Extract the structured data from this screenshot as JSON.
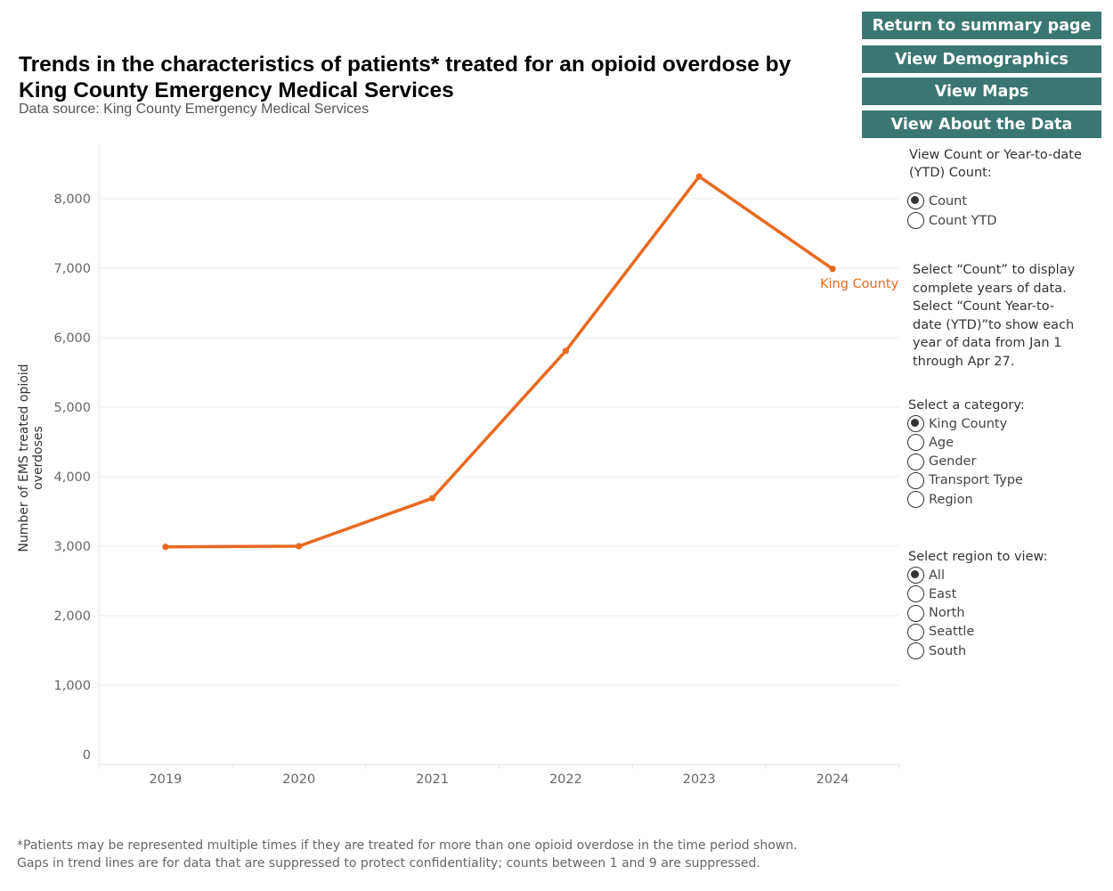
{
  "header": {
    "title": "Trends in the characteristics of patients* treated for an opioid overdose by King County Emergency Medical Services",
    "subtitle": "Data source: King County Emergency Medical Services"
  },
  "nav": {
    "summary": "Return to summary page",
    "demographics": "View Demographics",
    "maps": "View Maps",
    "about": "View About the Data"
  },
  "controls": {
    "count_label": "View Count or Year-to-date (YTD) Count:",
    "count_options": [
      {
        "label": "Count",
        "selected": true
      },
      {
        "label": "Count YTD",
        "selected": false
      }
    ],
    "help_text": "Select “Count” to display complete years of data. Select “Count Year-to-date (YTD)”to show each year of data from Jan 1 through Apr 27.",
    "category_label": "Select a category:",
    "category_options": [
      {
        "label": "King County",
        "selected": true
      },
      {
        "label": "Age",
        "selected": false
      },
      {
        "label": "Gender",
        "selected": false
      },
      {
        "label": "Transport Type",
        "selected": false
      },
      {
        "label": "Region",
        "selected": false
      }
    ],
    "region_label": "Select region to view:",
    "region_options": [
      {
        "label": "All",
        "selected": true
      },
      {
        "label": "East",
        "selected": false
      },
      {
        "label": "North",
        "selected": false
      },
      {
        "label": "Seattle",
        "selected": false
      },
      {
        "label": "South",
        "selected": false
      }
    ]
  },
  "footnotes": {
    "line1": "*Patients may be represented multiple times if they are treated for more than one opioid overdose in the time period shown.",
    "line2": "Gaps in trend lines are for data that are suppressed to protect confidentiality; counts between 1 and 9 are suppressed."
  },
  "chart_data": {
    "type": "line",
    "title": "Trends in the characteristics of patients* treated for an opioid overdose by King County Emergency Medical Services",
    "xlabel": "",
    "ylabel": "Number of EMS treated opioid overdoses",
    "categories": [
      "2019",
      "2020",
      "2021",
      "2022",
      "2023",
      "2024"
    ],
    "series": [
      {
        "name": "King County",
        "color": "#e8691f",
        "values": [
          2990,
          3000,
          3690,
          5810,
          8320,
          6990
        ]
      }
    ],
    "ylim": [
      0,
      8800
    ],
    "yticks": [
      0,
      1000,
      2000,
      3000,
      4000,
      5000,
      6000,
      7000,
      8000
    ],
    "ytick_labels": [
      "0",
      "1,000",
      "2,000",
      "3,000",
      "4,000",
      "5,000",
      "6,000",
      "7,000",
      "8,000"
    ],
    "grid": true,
    "legend": "end-of-line label"
  }
}
